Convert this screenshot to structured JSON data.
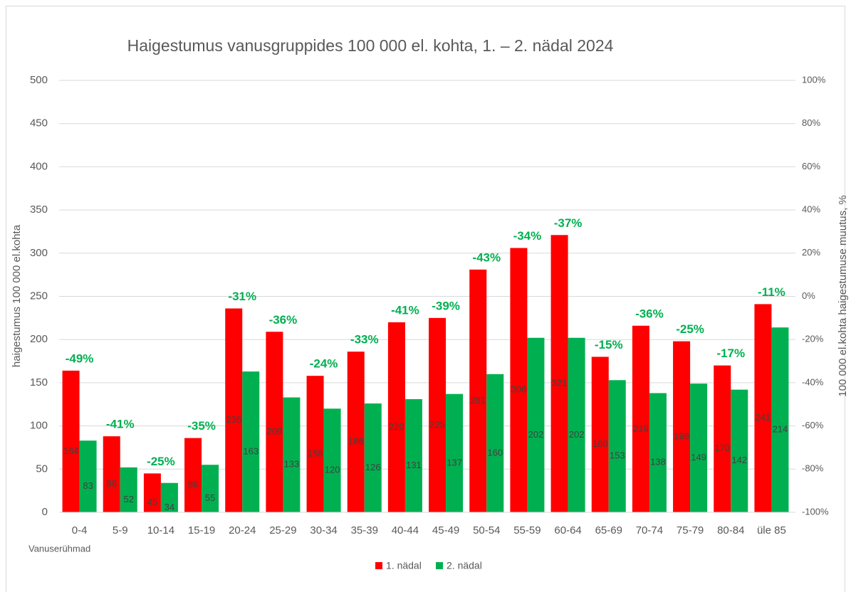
{
  "chart_data": {
    "type": "bar",
    "title": "Haigestumus vanusgruppides 100 000 el. kohta, 1. – 2. nädal 2024",
    "y_label": "haigestumus 100 000 el.kohta",
    "y2_label": "100 000 el.kohta haigestumuse muutus, %",
    "x_label": "Vanuserühmad",
    "categories": [
      "0-4",
      "5-9",
      "10-14",
      "15-19",
      "20-24",
      "25-29",
      "30-34",
      "35-39",
      "40-44",
      "45-49",
      "50-54",
      "55-59",
      "60-64",
      "65-69",
      "70-74",
      "75-79",
      "80-84",
      "üle 85"
    ],
    "series": [
      {
        "name": "1. nädal",
        "color": "#ff0000",
        "values": [
          164,
          88,
          45,
          86,
          236,
          209,
          158,
          186,
          220,
          225,
          281,
          306,
          321,
          180,
          216,
          198,
          170,
          241
        ]
      },
      {
        "name": "2. nädal",
        "color": "#00b050",
        "values": [
          83,
          52,
          34,
          55,
          163,
          133,
          120,
          126,
          131,
          137,
          160,
          202,
          202,
          153,
          138,
          149,
          142,
          214
        ]
      }
    ],
    "annotations": [
      "-49%",
      "-41%",
      "-25%",
      "-35%",
      "-31%",
      "-36%",
      "-24%",
      "-33%",
      "-41%",
      "-39%",
      "-43%",
      "-34%",
      "-37%",
      "-15%",
      "-36%",
      "-25%",
      "-17%",
      "-11%"
    ],
    "annotation_color": "#00b050",
    "ylim": [
      0,
      500
    ],
    "yticks": [
      0,
      50,
      100,
      150,
      200,
      250,
      300,
      350,
      400,
      450,
      500
    ],
    "y2lim": [
      -100,
      100
    ],
    "y2ticks": [
      {
        "value": -100,
        "label": "-100%"
      },
      {
        "value": -80,
        "label": "-80%"
      },
      {
        "value": -60,
        "label": "-60%"
      },
      {
        "value": -40,
        "label": "-40%"
      },
      {
        "value": -20,
        "label": "-20%"
      },
      {
        "value": 0,
        "label": "0%"
      },
      {
        "value": 20,
        "label": "20%"
      },
      {
        "value": 40,
        "label": "40%"
      },
      {
        "value": 60,
        "label": "60%"
      },
      {
        "value": 80,
        "label": "80%"
      },
      {
        "value": 100,
        "label": "100%"
      }
    ],
    "grid": true,
    "legend": "bottom"
  }
}
